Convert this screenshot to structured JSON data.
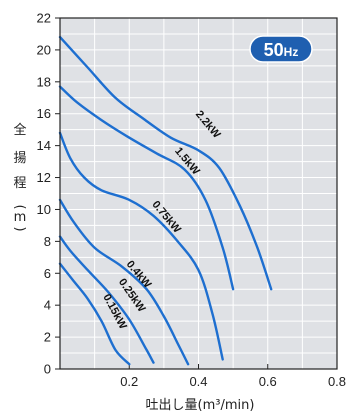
{
  "chart_data": {
    "type": "line",
    "title": "",
    "badge": {
      "main": "50",
      "unit": "Hz",
      "color": "#1f5fb0"
    },
    "xlabel": "吐出し量(m³/min)",
    "ylabel_chars": [
      "全",
      "揚",
      "程",
      "(",
      "m",
      ")"
    ],
    "xlim": [
      0,
      0.8
    ],
    "ylim": [
      0,
      22
    ],
    "x_ticks": [
      {
        "value": 0.2,
        "label": "0.2"
      },
      {
        "value": 0.4,
        "label": "0.4"
      },
      {
        "value": 0.6,
        "label": "0.6"
      },
      {
        "value": 0.8,
        "label": "0.8"
      }
    ],
    "y_ticks": [
      {
        "value": 0,
        "label": "0"
      },
      {
        "value": 2,
        "label": "2"
      },
      {
        "value": 4,
        "label": "4"
      },
      {
        "value": 6,
        "label": "6"
      },
      {
        "value": 8,
        "label": "8"
      },
      {
        "value": 10,
        "label": "10"
      },
      {
        "value": 12,
        "label": "12"
      },
      {
        "value": 14,
        "label": "14"
      },
      {
        "value": 16,
        "label": "16"
      },
      {
        "value": 18,
        "label": "18"
      },
      {
        "value": 20,
        "label": "20"
      },
      {
        "value": 22,
        "label": "22"
      }
    ],
    "grid": true,
    "line_color": "#1e6fd0",
    "background_color": "#dfe1e5",
    "series": [
      {
        "label": "0.15kW",
        "label_at": [
          0.15,
          3.5
        ],
        "label_angle": 62,
        "points": [
          [
            0,
            6.6
          ],
          [
            0.04,
            5.5
          ],
          [
            0.08,
            4.4
          ],
          [
            0.12,
            3.0
          ],
          [
            0.16,
            1.2
          ],
          [
            0.2,
            0.3
          ]
        ]
      },
      {
        "label": "0.25kW",
        "label_at": [
          0.2,
          4.5
        ],
        "label_angle": 55,
        "points": [
          [
            0,
            8.3
          ],
          [
            0.03,
            7.4
          ],
          [
            0.08,
            6.2
          ],
          [
            0.14,
            4.8
          ],
          [
            0.2,
            3.1
          ],
          [
            0.25,
            1.2
          ],
          [
            0.27,
            0.4
          ]
        ]
      },
      {
        "label": "0.4kW",
        "label_at": [
          0.22,
          5.8
        ],
        "label_angle": 50,
        "points": [
          [
            0,
            10.6
          ],
          [
            0.04,
            9.2
          ],
          [
            0.1,
            7.6
          ],
          [
            0.18,
            6.4
          ],
          [
            0.25,
            5.0
          ],
          [
            0.3,
            3.3
          ],
          [
            0.34,
            1.6
          ],
          [
            0.37,
            0.3
          ]
        ]
      },
      {
        "label": "0.75kW",
        "label_at": [
          0.3,
          9.4
        ],
        "label_angle": 50,
        "points": [
          [
            0,
            14.8
          ],
          [
            0.03,
            13.2
          ],
          [
            0.07,
            12.0
          ],
          [
            0.12,
            11.2
          ],
          [
            0.2,
            10.6
          ],
          [
            0.27,
            9.6
          ],
          [
            0.34,
            8.0
          ],
          [
            0.4,
            6.2
          ],
          [
            0.44,
            3.5
          ],
          [
            0.47,
            0.6
          ]
        ]
      },
      {
        "label": "1.5kW",
        "label_at": [
          0.36,
          12.9
        ],
        "label_angle": 50,
        "points": [
          [
            0,
            17.7
          ],
          [
            0.05,
            16.7
          ],
          [
            0.12,
            15.6
          ],
          [
            0.2,
            14.5
          ],
          [
            0.28,
            13.5
          ],
          [
            0.36,
            12.5
          ],
          [
            0.42,
            10.6
          ],
          [
            0.47,
            7.6
          ],
          [
            0.5,
            5.0
          ]
        ]
      },
      {
        "label": "2.2kW",
        "label_at": [
          0.42,
          15.2
        ],
        "label_angle": 50,
        "points": [
          [
            0,
            20.8
          ],
          [
            0.08,
            18.9
          ],
          [
            0.16,
            17.0
          ],
          [
            0.24,
            15.7
          ],
          [
            0.32,
            14.5
          ],
          [
            0.4,
            13.7
          ],
          [
            0.46,
            12.6
          ],
          [
            0.52,
            10.2
          ],
          [
            0.57,
            7.6
          ],
          [
            0.61,
            5.0
          ]
        ]
      }
    ]
  }
}
